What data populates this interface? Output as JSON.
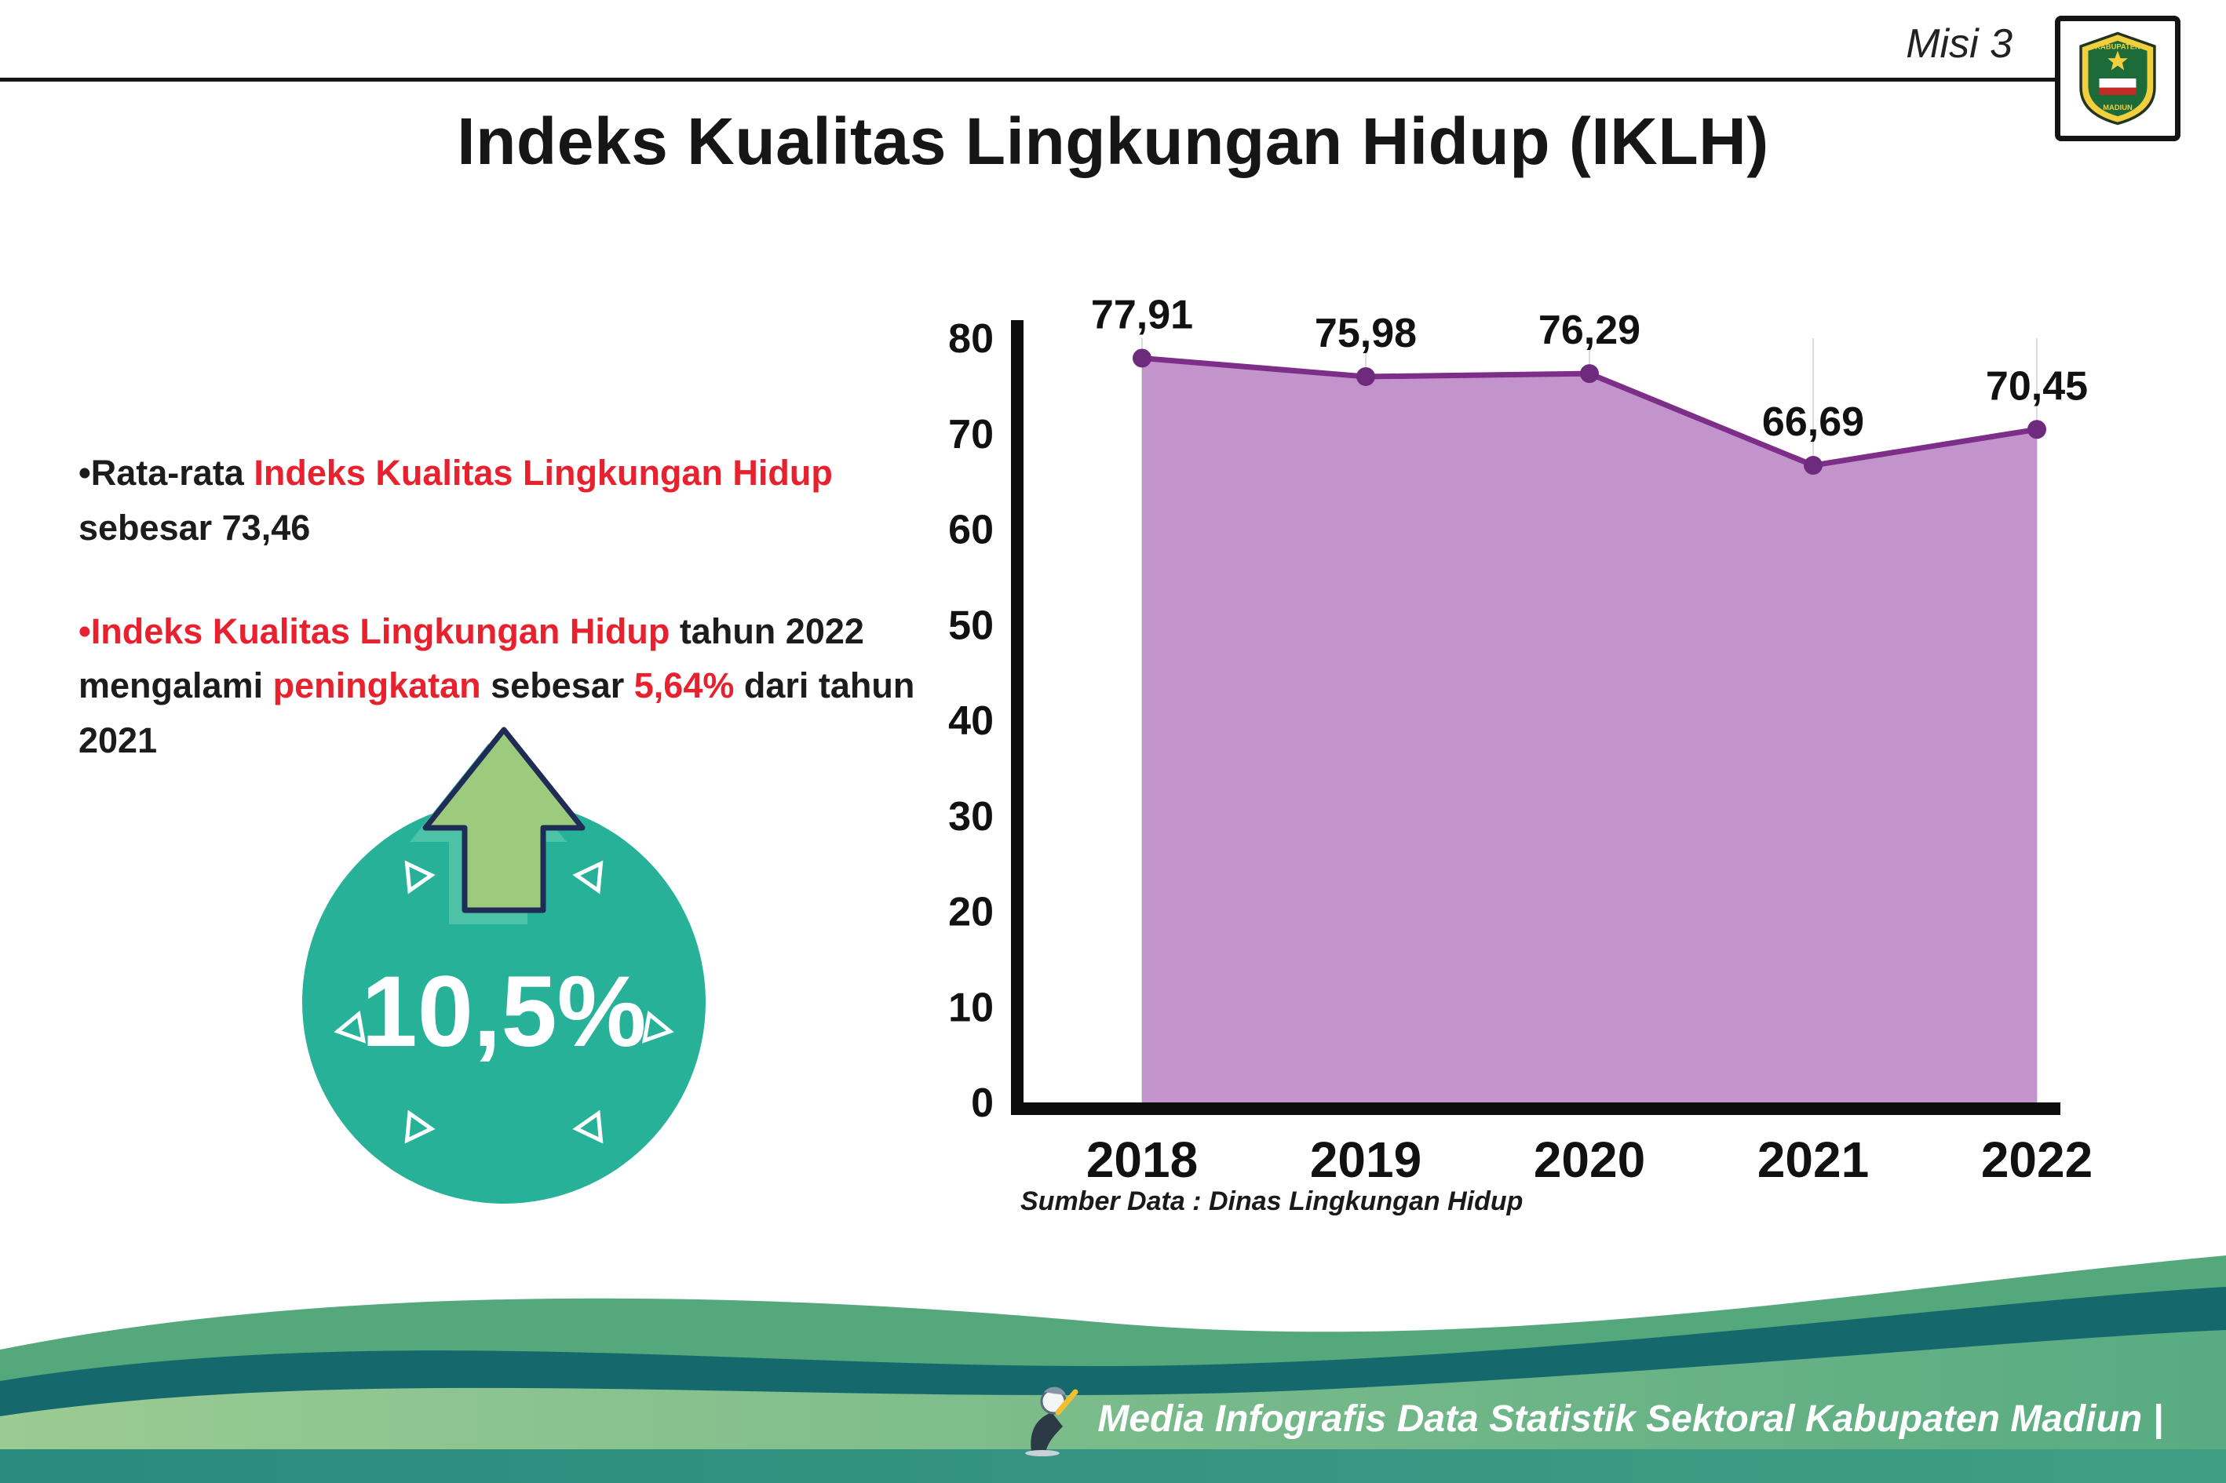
{
  "header": {
    "misi_label": "Misi 3",
    "title": "Indeks Kualitas Lingkungan Hidup (IKLH)",
    "logo": {
      "top_text": "KABUPATEN",
      "bottom_text": "MADIUN"
    }
  },
  "bullets": {
    "item1": {
      "seg1": "•Rata-rata ",
      "seg2": "Indeks Kualitas Lingkungan Hidup",
      "seg3": " sebesar 73,46"
    },
    "item2": {
      "seg1": "•Indeks Kualitas Lingkungan Hidup",
      "seg2": " tahun 2022 mengalami ",
      "seg3": "peningkatan",
      "seg4": " sebesar ",
      "seg5": "5,64%",
      "seg6": " dari tahun 2021"
    }
  },
  "badge": {
    "value": "10,5%",
    "direction": "up"
  },
  "chart_data": {
    "type": "area",
    "categories": [
      "2018",
      "2019",
      "2020",
      "2021",
      "2022"
    ],
    "values": [
      77.91,
      75.98,
      76.29,
      66.69,
      70.45
    ],
    "value_labels": [
      "77,91",
      "75,98",
      "76,29",
      "66,69",
      "70,45"
    ],
    "ylim": [
      0,
      80
    ],
    "yticks": [
      0,
      10,
      20,
      30,
      40,
      50,
      60,
      70,
      80
    ],
    "grid": "vertical-light",
    "legend": "none",
    "area_fill": "#c394cc",
    "line_color": "#7c2e88",
    "point_color": "#6e2a7d",
    "source_note": "Sumber Data : Dinas Lingkungan Hidup"
  },
  "footer": {
    "credit": "Media Infografis Data Statistik Sektoral Kabupaten Madiun |"
  },
  "colors": {
    "accent_red": "#e8212e",
    "badge_teal": "#27b199",
    "arrow_green": "#9dcb7e",
    "footer_green_light": "#93c792",
    "footer_green_mid": "#55a87b",
    "footer_teal_dark": "#15696d"
  }
}
